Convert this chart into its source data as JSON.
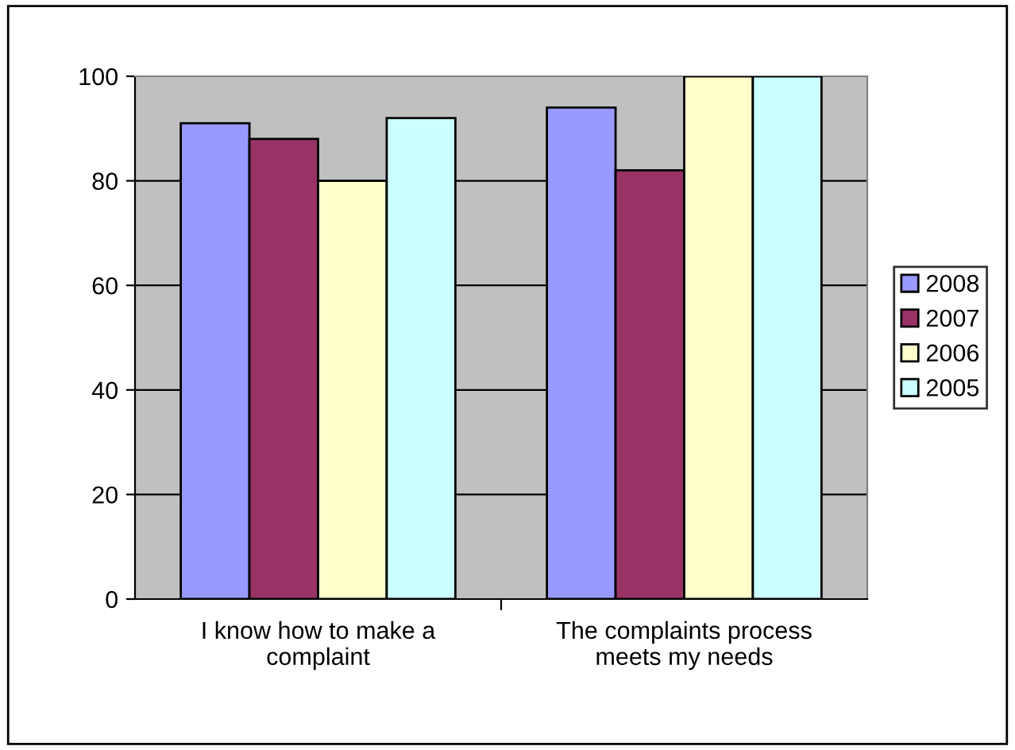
{
  "chart_data": {
    "type": "bar",
    "categories": [
      "I know how to make a\ncomplaint",
      "The complaints process\nmeets my needs"
    ],
    "series": [
      {
        "name": "2008",
        "color": "#9999ff",
        "values": [
          91,
          94
        ]
      },
      {
        "name": "2007",
        "color": "#993366",
        "values": [
          88,
          82
        ]
      },
      {
        "name": "2006",
        "color": "#ffffcc",
        "values": [
          80,
          100
        ]
      },
      {
        "name": "2005",
        "color": "#ccffff",
        "values": [
          92,
          100
        ]
      }
    ],
    "ylim": [
      0,
      100
    ],
    "yticks": [
      0,
      20,
      40,
      60,
      80,
      100
    ],
    "grid": "y",
    "legend": "right"
  }
}
